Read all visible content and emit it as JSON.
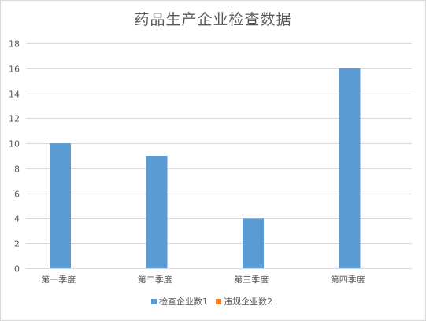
{
  "chart_data": {
    "type": "bar",
    "title": "药品生产企业检查数据",
    "categories": [
      "第一季度",
      "第二季度",
      "第三季度",
      "第四季度"
    ],
    "series": [
      {
        "name": "检查企业数1",
        "values": [
          10,
          9,
          4,
          16
        ],
        "color": "#5b9bd5"
      },
      {
        "name": "违规企业数2",
        "values": [
          0,
          0,
          0,
          0
        ],
        "color": "#ed7d31"
      }
    ],
    "ylim": [
      0,
      18
    ],
    "yticks": [
      0,
      2,
      4,
      6,
      8,
      10,
      12,
      14,
      16,
      18
    ],
    "grid": true,
    "legend": "bottom"
  }
}
